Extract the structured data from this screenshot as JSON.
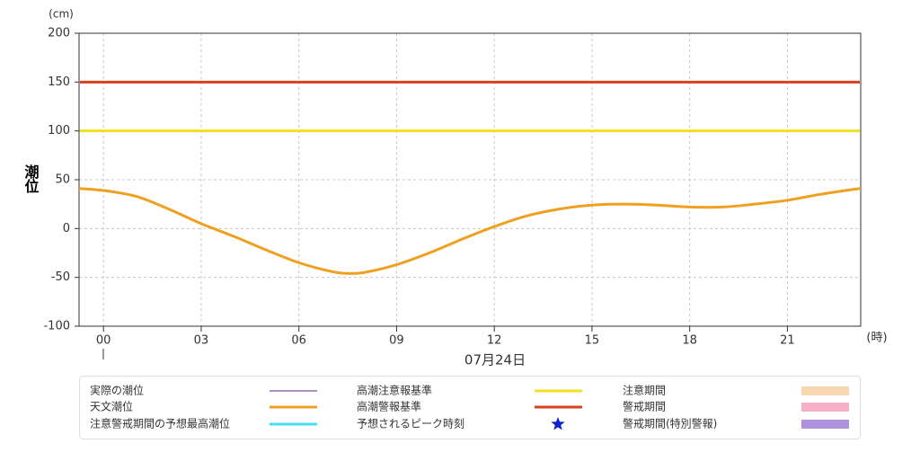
{
  "chart_data": {
    "type": "line",
    "y_unit": "(cm)",
    "y_label": "潮位",
    "x_unit": "(時)",
    "date": "07月24日",
    "xlim": [
      -0.75,
      23.25
    ],
    "ylim": [
      -100,
      200
    ],
    "xticks": [
      {
        "value": 0,
        "label": "00"
      },
      {
        "value": 3,
        "label": "03"
      },
      {
        "value": 6,
        "label": "06"
      },
      {
        "value": 9,
        "label": "09"
      },
      12,
      15,
      18,
      21
    ],
    "yticks": [
      -100,
      -50,
      0,
      50,
      100,
      150,
      200
    ],
    "grid": true,
    "series": [
      {
        "name": "天文潮位",
        "color": "#f0a020",
        "x": [
          -0.75,
          0,
          1,
          2,
          3,
          4,
          5,
          6,
          7,
          7.5,
          8,
          9,
          10,
          11,
          12,
          13,
          14,
          15,
          16,
          17,
          18,
          19,
          20,
          21,
          22,
          23,
          23.25
        ],
        "values": [
          41,
          39,
          33,
          20,
          5,
          -8,
          -22,
          -35,
          -44,
          -46,
          -45,
          -37,
          -25,
          -11,
          2,
          13,
          20,
          24,
          25,
          24,
          22,
          22,
          25,
          29,
          35,
          40,
          41
        ]
      }
    ],
    "hlines": [
      {
        "name": "高潮注意報基準",
        "color": "#f0e020",
        "value": 100
      },
      {
        "name": "高潮警報基準",
        "color": "#d84020",
        "value": 150
      }
    ],
    "legend_extra": [
      {
        "name": "実際の潮位",
        "color": "#5a2080",
        "symbol": "thin-line"
      },
      {
        "name": "注意警戒期間の予想最高潮位",
        "color": "#40e0f0",
        "symbol": "line"
      },
      {
        "name": "予想されるピーク時刻",
        "color": "#1020d0",
        "symbol": "star"
      },
      {
        "name": "注意期間",
        "color": "#f8d8b0",
        "symbol": "box"
      },
      {
        "name": "警戒期間",
        "color": "#f8b0c8",
        "symbol": "box"
      },
      {
        "name": "警戒期間(特別警報)",
        "color": "#b090e0",
        "symbol": "box"
      }
    ]
  }
}
